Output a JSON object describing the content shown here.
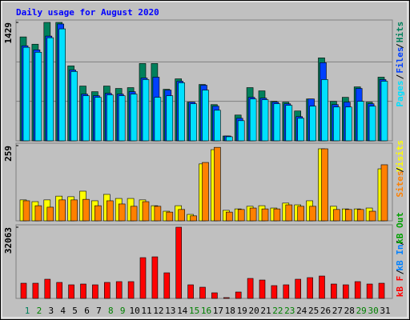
{
  "chart_data": [
    {
      "type": "bar",
      "title": "Daily usage for August 2020",
      "ylim": [
        0,
        1429
      ],
      "yticks": [
        1429
      ],
      "series": [
        {
          "name": "Hits",
          "color": "#00805c",
          "values": [
            1254,
            1166,
            1429,
            1429,
            904,
            661,
            593,
            661,
            632,
            642,
            933,
            933,
            622,
            748,
            467,
            680,
            437,
            58,
            311,
            642,
            603,
            476,
            467,
            360,
            505,
            1001,
            476,
            525,
            651,
            467,
            768
          ]
        },
        {
          "name": "Files",
          "color": "#0040ff",
          "values": [
            1147,
            1098,
            1264,
            1410,
            855,
            564,
            544,
            573,
            564,
            593,
            758,
            768,
            612,
            719,
            467,
            671,
            418,
            58,
            272,
            525,
            515,
            467,
            447,
            292,
            505,
            943,
            437,
            467,
            632,
            447,
            739
          ]
        },
        {
          "name": "Pages",
          "color": "#00e0ff",
          "values": [
            1128,
            1069,
            1244,
            1351,
            836,
            544,
            525,
            554,
            544,
            564,
            739,
            525,
            544,
            700,
            447,
            612,
            369,
            49,
            243,
            505,
            496,
            447,
            428,
            272,
            418,
            739,
            408,
            408,
            476,
            418,
            719
          ]
        }
      ],
      "separator": "/"
    },
    {
      "type": "bar",
      "ylim": [
        0,
        259
      ],
      "yticks": [
        259
      ],
      "series": [
        {
          "name": "Visits",
          "color": "#ffff00",
          "values": [
            72,
            66,
            72,
            85,
            83,
            102,
            69,
            91,
            77,
            77,
            72,
            52,
            33,
            52,
            22,
            196,
            245,
            36,
            41,
            50,
            52,
            44,
            61,
            55,
            69,
            248,
            50,
            41,
            41,
            44,
            179
          ]
        },
        {
          "name": "Sites",
          "color": "#ff8000",
          "values": [
            69,
            52,
            47,
            72,
            72,
            74,
            52,
            69,
            58,
            50,
            66,
            50,
            30,
            39,
            17,
            201,
            253,
            30,
            39,
            44,
            41,
            41,
            55,
            50,
            50,
            248,
            39,
            39,
            39,
            33,
            193
          ]
        }
      ],
      "separator": "/"
    },
    {
      "type": "bar",
      "ylim": [
        0,
        32063
      ],
      "yticks": [
        32063
      ],
      "categories": [
        "1",
        "2",
        "3",
        "4",
        "5",
        "6",
        "7",
        "8",
        "9",
        "10",
        "11",
        "12",
        "13",
        "14",
        "15",
        "16",
        "17",
        "18",
        "19",
        "20",
        "21",
        "22",
        "23",
        "24",
        "25",
        "26",
        "27",
        "28",
        "29",
        "30",
        "31"
      ],
      "category_colors": [
        "#00805c",
        "#008000",
        "#000000",
        "#000000",
        "#000000",
        "#000000",
        "#000000",
        "#008000",
        "#008000",
        "#000000",
        "#000000",
        "#000000",
        "#000000",
        "#000000",
        "#008000",
        "#008000",
        "#000000",
        "#000000",
        "#000000",
        "#000000",
        "#000000",
        "#008000",
        "#008000",
        "#000000",
        "#000000",
        "#000000",
        "#000000",
        "#000000",
        "#008000",
        "#008000",
        "#000000"
      ],
      "series": [
        {
          "name": "kB F",
          "color": "#ff0000",
          "values": [
            6840,
            6840,
            8640,
            7200,
            6120,
            6480,
            6120,
            7200,
            7560,
            7560,
            18360,
            18720,
            11520,
            32063,
            6120,
            5040,
            2520,
            360,
            2880,
            9000,
            8280,
            5760,
            6120,
            8640,
            9360,
            10080,
            6480,
            6120,
            7560,
            6480,
            6840
          ]
        }
      ],
      "extra_legend": [
        {
          "name": "kB In",
          "color": "#0080ff"
        },
        {
          "name": "kB Out",
          "color": "#00a000"
        }
      ],
      "separator": "/"
    }
  ]
}
